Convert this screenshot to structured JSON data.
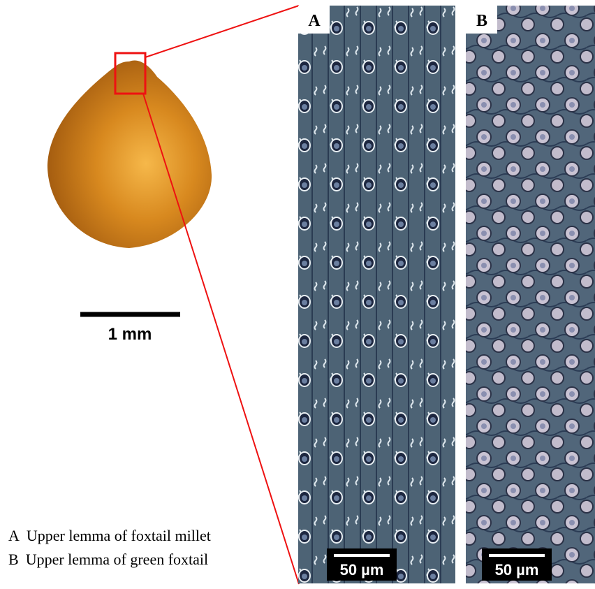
{
  "seed": {
    "scale_bar": "1 mm"
  },
  "panels": [
    {
      "label": "A",
      "scale_bar": "50 µm"
    },
    {
      "label": "B",
      "scale_bar": "50 µm"
    }
  ],
  "legend": [
    {
      "key": "A",
      "text": "Upper lemma of foxtail millet"
    },
    {
      "key": "B",
      "text": "Upper lemma of green foxtail"
    }
  ]
}
